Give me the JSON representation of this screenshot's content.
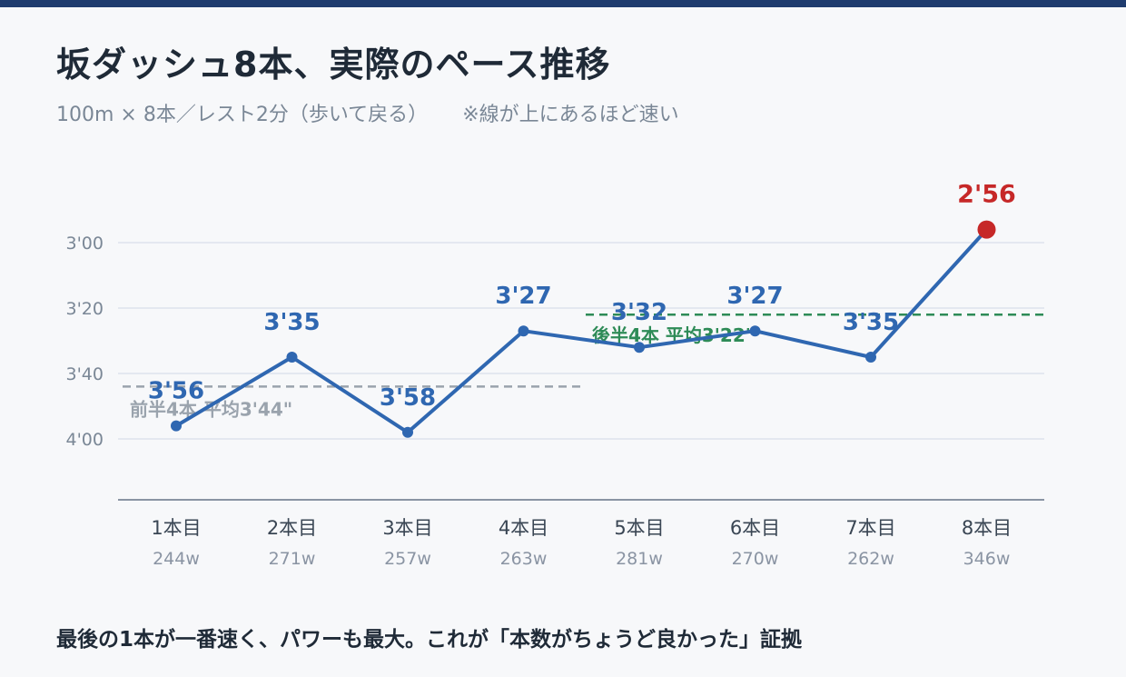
{
  "title": "坂ダッシュ8本、実際のペース推移",
  "subtitle": "100m × 8本／レスト2分（歩いて戻る）",
  "subtitle_note": "※線が上にあるほど速い",
  "footer": "最後の1本が一番速く、パワーも最大。これが「本数がちょうど良かった」証拠",
  "colors": {
    "line": "#2f67b1",
    "highlight": "#c62828",
    "first_half_avg": "#9aa3ad",
    "second_half_avg": "#2e8b57",
    "grid": "#dde3ec",
    "axis": "#8a94a3",
    "tick_text": "#7a8796"
  },
  "chart_data": {
    "type": "line",
    "categories": [
      "1本目",
      "2本目",
      "3本目",
      "4本目",
      "5本目",
      "6本目",
      "7本目",
      "8本目"
    ],
    "sub_labels": [
      "244w",
      "271w",
      "257w",
      "263w",
      "281w",
      "270w",
      "262w",
      "346w"
    ],
    "y_unit": "seconds per 100m (pace)",
    "values": [
      236,
      215,
      238,
      207,
      212,
      207,
      215,
      176
    ],
    "value_labels": [
      "3'56",
      "3'35",
      "3'58",
      "3'27",
      "3'32",
      "3'27",
      "3'35",
      "2'56"
    ],
    "highlight_index": 7,
    "y_axis_inverted": true,
    "ylim": [
      170,
      250
    ],
    "yticks": [
      180,
      200,
      220,
      240
    ],
    "ytick_labels": [
      "3'00",
      "3'20",
      "3'40",
      "4'00"
    ],
    "grid": true,
    "reference_lines": [
      {
        "label": "前半4本 平均3'44\"",
        "value": 224,
        "from_index": 0,
        "to_index": 3,
        "style": "dashed",
        "color": "#9aa3ad"
      },
      {
        "label": "後半4本 平均3'22\"",
        "value": 202,
        "from_index": 4,
        "to_index": 7,
        "style": "dashed",
        "color": "#2e8b57"
      }
    ]
  }
}
